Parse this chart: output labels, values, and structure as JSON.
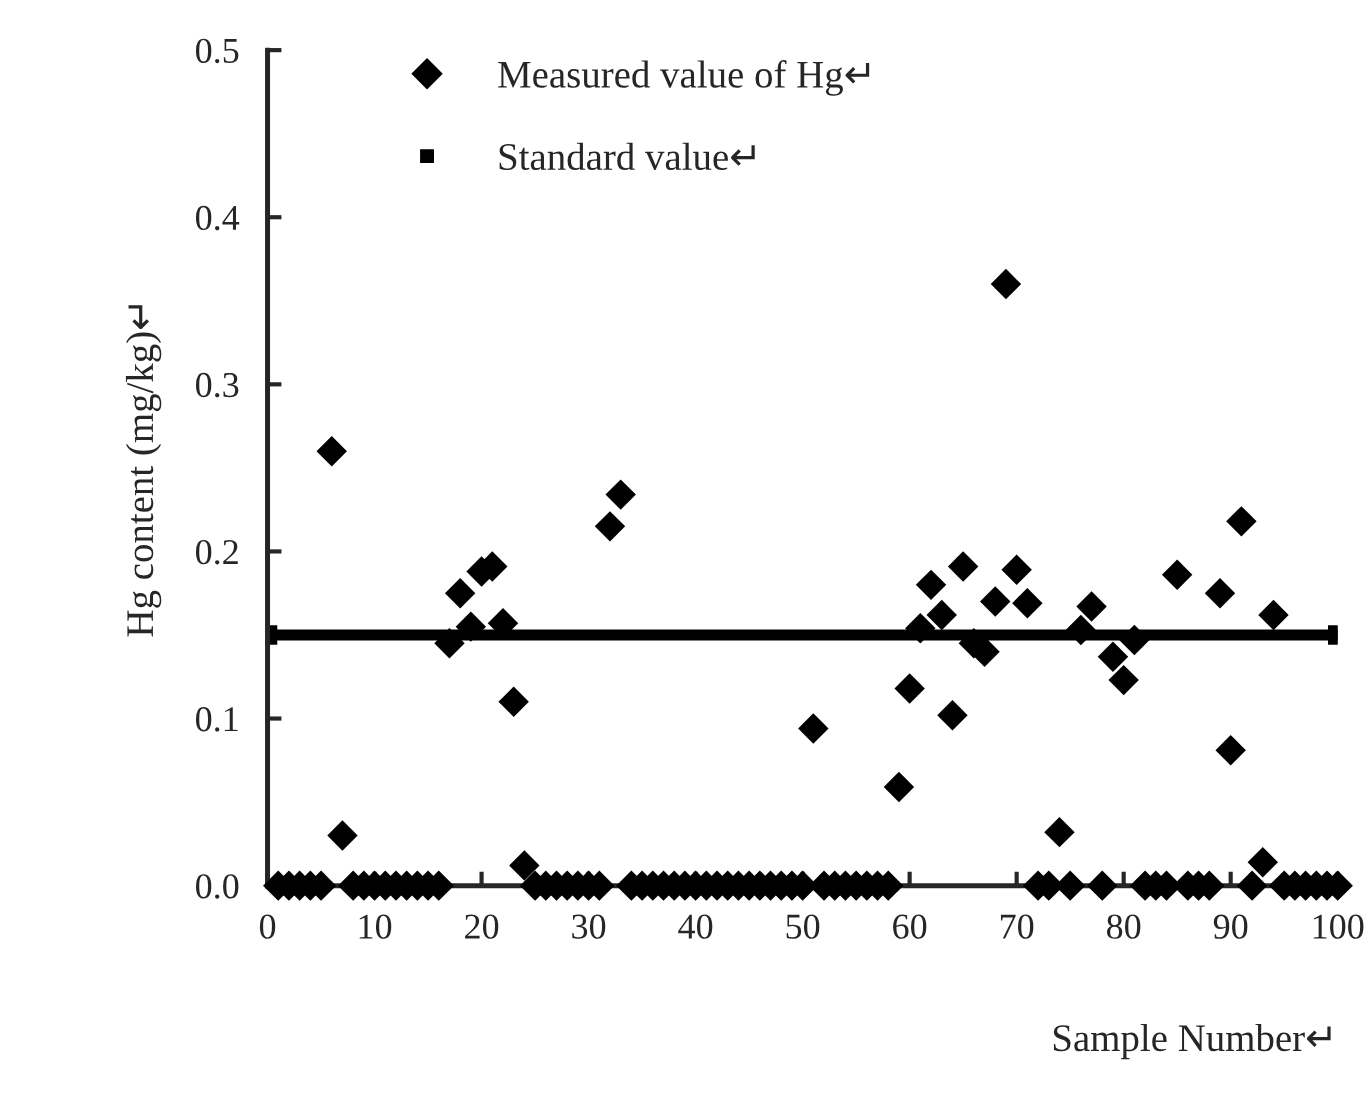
{
  "chart_data": {
    "type": "scatter",
    "xlabel": "Sample Number↵",
    "ylabel": "Hg content (mg/kg)↵",
    "xlim": [
      0,
      100
    ],
    "xticks": [
      0,
      10,
      20,
      30,
      40,
      50,
      60,
      70,
      80,
      90,
      100
    ],
    "ylim": [
      0,
      0.5
    ],
    "yticks": [
      {
        "value": 0,
        "label": "0.0"
      },
      0.1,
      0.2,
      0.3,
      0.4,
      0.5
    ],
    "grid": false,
    "legend": "top left",
    "series": [
      {
        "name": "Measured value of Hg↵",
        "color": "#000000",
        "marker": "diamond",
        "x": [
          1,
          2,
          3,
          4,
          5,
          6,
          7,
          8,
          9,
          10,
          11,
          12,
          13,
          14,
          15,
          16,
          17,
          18,
          19,
          20,
          21,
          22,
          23,
          24,
          25,
          26,
          27,
          28,
          29,
          30,
          31,
          32,
          33,
          34,
          35,
          36,
          37,
          38,
          39,
          40,
          41,
          42,
          43,
          44,
          45,
          46,
          47,
          48,
          49,
          50,
          51,
          52,
          53,
          54,
          55,
          56,
          57,
          58,
          59,
          60,
          61,
          62,
          63,
          64,
          65,
          66,
          67,
          68,
          69,
          70,
          71,
          72,
          73,
          74,
          75,
          76,
          77,
          78,
          79,
          80,
          81,
          82,
          83,
          84,
          85,
          86,
          87,
          88,
          89,
          90,
          91,
          92,
          93,
          94,
          95,
          96,
          97,
          98,
          99,
          100
        ],
        "values": [
          0,
          0,
          0,
          0,
          0,
          0.26,
          0.03,
          0,
          0,
          0,
          0,
          0,
          0,
          0,
          0,
          0,
          0.145,
          0.175,
          0.155,
          0.188,
          0.191,
          0.157,
          0.11,
          0.012,
          0,
          0,
          0,
          0,
          0,
          0,
          0,
          0.215,
          0.234,
          0,
          0,
          0,
          0,
          0,
          0,
          0,
          0,
          0,
          0,
          0,
          0,
          0,
          0,
          0,
          0,
          0,
          0.094,
          0,
          0,
          0,
          0,
          0,
          0,
          0,
          0.059,
          0.118,
          0.154,
          0.18,
          0.162,
          0.102,
          0.191,
          0.145,
          0.14,
          0.17,
          0.36,
          0.189,
          0.169,
          0,
          0,
          0.032,
          0,
          0.153,
          0.167,
          0,
          0.137,
          0.123,
          0.147,
          0,
          0,
          0,
          0.186,
          0,
          0,
          0,
          0.175,
          0.081,
          0.218,
          0,
          0.014,
          0.162,
          0,
          0,
          0,
          0,
          0,
          0
        ]
      },
      {
        "name": "Standard value↵",
        "color": "#000000",
        "type": "line",
        "marker": "square",
        "line_style": "solid",
        "x": [
          0,
          100
        ],
        "values": [
          0.15,
          0.15
        ]
      }
    ]
  }
}
